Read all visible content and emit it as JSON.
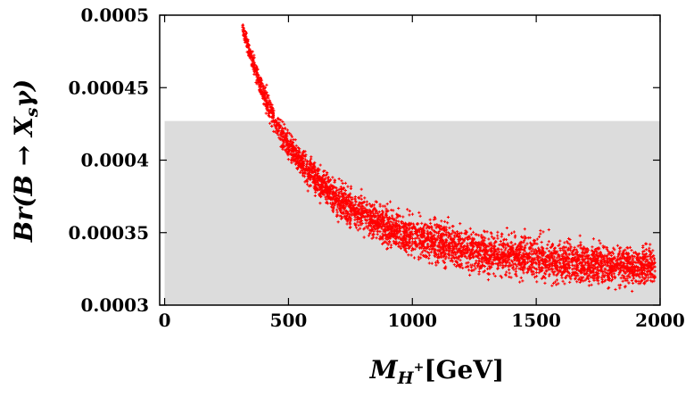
{
  "chart_data": {
    "type": "scatter",
    "title": "",
    "xlabel": {
      "main": "M",
      "sub": "H",
      "sup": "+",
      "unit": "[GeV]"
    },
    "ylabel": {
      "prefix": "Br(B → X",
      "sub": "s",
      "suffix": "γ)"
    },
    "xlim": [
      -20,
      2000
    ],
    "ylim": [
      0.0003,
      0.0005
    ],
    "x_ticks": [
      0,
      500,
      1000,
      1500,
      2000
    ],
    "x_tick_labels": [
      "0",
      "500",
      "1000",
      "1500",
      "2000"
    ],
    "y_ticks": [
      0.0003,
      0.00035,
      0.0004,
      0.00045,
      0.0005
    ],
    "y_tick_labels": [
      "0.0003",
      "0.00035",
      "0.0004",
      "0.00045",
      "0.0005"
    ],
    "grid": false,
    "allowed_band": {
      "y_min": 0.0003,
      "y_max": 0.000427,
      "x_min": 0,
      "x_max": 2000,
      "color": "#dcdcdc"
    },
    "series": [
      {
        "marker": "+",
        "color": "#ff0000",
        "x": [
          315,
          350,
          400,
          450,
          500,
          550,
          600,
          700,
          800,
          900,
          1000,
          1100,
          1200,
          1300,
          1400,
          1500,
          1600,
          1700,
          1800,
          1900,
          1980
        ],
        "y": [
          0.000492,
          0.00047,
          0.000445,
          0.000425,
          0.00041,
          0.000398,
          0.000388,
          0.000373,
          0.000362,
          0.000354,
          0.000348,
          0.000343,
          0.000339,
          0.000336,
          0.000334,
          0.000332,
          0.00033,
          0.000329,
          0.000328,
          0.000327,
          0.000326
        ],
        "spread": [
          2e-06,
          3e-06,
          4e-06,
          4e-06,
          5e-06,
          5e-06,
          5e-06,
          6e-06,
          6e-06,
          6e-06,
          7e-06,
          7e-06,
          7e-06,
          7e-06,
          7e-06,
          7e-06,
          7e-06,
          7e-06,
          7e-06,
          7e-06,
          7e-06
        ]
      }
    ]
  }
}
